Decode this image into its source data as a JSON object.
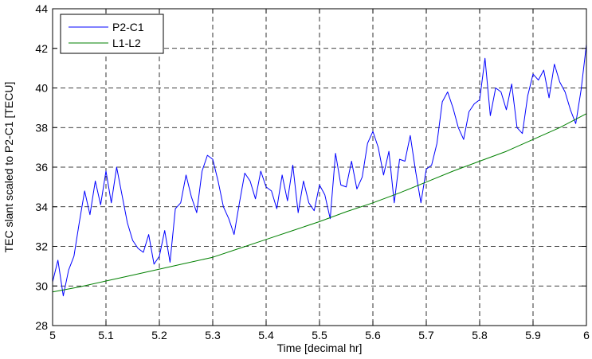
{
  "chart_data": {
    "type": "line",
    "title": "",
    "xlabel": "Time [decimal hr]",
    "ylabel": "TEC slant scaled to P2-C1  [TECU]",
    "xlim": [
      5,
      6
    ],
    "ylim": [
      28,
      44
    ],
    "x_ticks": [
      "5",
      "5.1",
      "5.2",
      "5.3",
      "5.4",
      "5.5",
      "5.6",
      "5.7",
      "5.8",
      "5.9",
      "6"
    ],
    "y_ticks": [
      "28",
      "30",
      "32",
      "34",
      "36",
      "38",
      "40",
      "42",
      "44"
    ],
    "grid": true,
    "legend_position": "top-left",
    "series": [
      {
        "name": "P2-C1",
        "color": "#0000ff",
        "x": [
          5.0,
          5.01,
          5.02,
          5.03,
          5.04,
          5.05,
          5.06,
          5.07,
          5.08,
          5.09,
          5.1,
          5.11,
          5.12,
          5.13,
          5.14,
          5.15,
          5.16,
          5.17,
          5.18,
          5.19,
          5.2,
          5.21,
          5.22,
          5.23,
          5.24,
          5.25,
          5.26,
          5.27,
          5.28,
          5.29,
          5.3,
          5.31,
          5.32,
          5.33,
          5.34,
          5.35,
          5.36,
          5.37,
          5.38,
          5.39,
          5.4,
          5.41,
          5.42,
          5.43,
          5.44,
          5.45,
          5.46,
          5.47,
          5.48,
          5.49,
          5.5,
          5.51,
          5.52,
          5.53,
          5.54,
          5.55,
          5.56,
          5.57,
          5.58,
          5.59,
          5.6,
          5.61,
          5.62,
          5.63,
          5.64,
          5.65,
          5.66,
          5.67,
          5.68,
          5.69,
          5.7,
          5.71,
          5.72,
          5.73,
          5.74,
          5.75,
          5.76,
          5.77,
          5.78,
          5.79,
          5.8,
          5.81,
          5.82,
          5.83,
          5.84,
          5.85,
          5.86,
          5.87,
          5.88,
          5.89,
          5.9,
          5.91,
          5.92,
          5.93,
          5.94,
          5.95,
          5.96,
          5.97,
          5.98,
          5.99,
          6.0
        ],
        "y": [
          30.2,
          31.3,
          29.5,
          30.8,
          31.5,
          33.2,
          34.8,
          33.6,
          35.3,
          34.1,
          35.8,
          34.2,
          36.0,
          34.6,
          33.2,
          32.3,
          31.9,
          31.7,
          32.6,
          31.1,
          31.5,
          32.8,
          31.2,
          33.9,
          34.2,
          35.6,
          34.5,
          33.7,
          35.8,
          36.6,
          36.4,
          35.3,
          34.0,
          33.4,
          32.6,
          34.2,
          35.7,
          35.3,
          34.4,
          35.8,
          35.0,
          34.8,
          33.9,
          35.6,
          34.3,
          36.1,
          33.7,
          35.3,
          34.2,
          33.8,
          35.1,
          34.6,
          33.4,
          36.7,
          35.1,
          35.0,
          36.3,
          34.9,
          35.5,
          37.2,
          37.8,
          37.0,
          35.6,
          36.8,
          34.2,
          36.4,
          36.3,
          37.6,
          35.8,
          34.2,
          35.9,
          36.1,
          37.2,
          39.3,
          39.8,
          39.0,
          38.0,
          37.4,
          38.8,
          39.2,
          39.4,
          41.5,
          38.6,
          40.0,
          39.8,
          38.9,
          40.2,
          38.0,
          37.7,
          39.6,
          40.7,
          40.4,
          40.9,
          39.5,
          41.2,
          40.3,
          39.8,
          38.9,
          38.2,
          39.9,
          42.2
        ]
      },
      {
        "name": "L1-L2",
        "color": "#008000",
        "x": [
          5.0,
          5.05,
          5.1,
          5.15,
          5.2,
          5.25,
          5.3,
          5.35,
          5.4,
          5.45,
          5.5,
          5.55,
          5.6,
          5.65,
          5.7,
          5.75,
          5.8,
          5.85,
          5.9,
          5.95,
          6.0
        ],
        "y": [
          29.7,
          29.95,
          30.25,
          30.55,
          30.85,
          31.15,
          31.45,
          31.9,
          32.35,
          32.8,
          33.25,
          33.75,
          34.2,
          34.7,
          35.25,
          35.8,
          36.3,
          36.8,
          37.4,
          38.0,
          38.7
        ]
      }
    ]
  }
}
